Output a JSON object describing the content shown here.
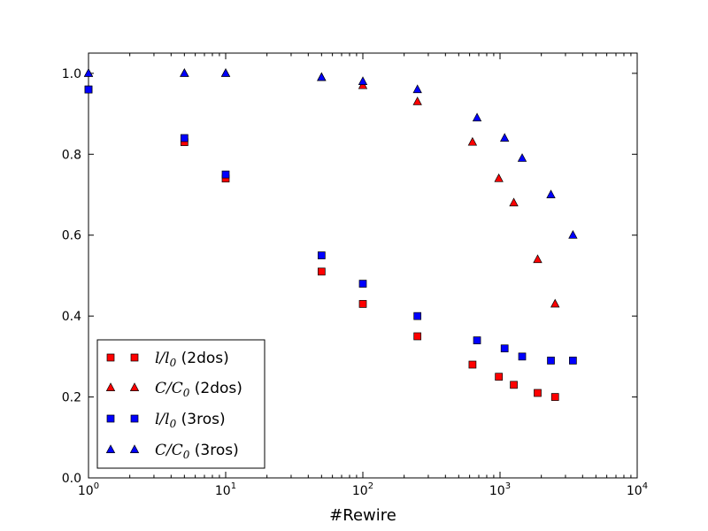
{
  "chart_data": {
    "type": "scatter",
    "title": "",
    "xlabel": "#Rewire",
    "ylabel": "",
    "xscale": "log",
    "xlim": [
      1,
      10000
    ],
    "ylim": [
      0.0,
      1.05
    ],
    "x_ticks": [
      {
        "base": "10",
        "exp": "0"
      },
      {
        "base": "10",
        "exp": "1"
      },
      {
        "base": "10",
        "exp": "2"
      },
      {
        "base": "10",
        "exp": "3"
      },
      {
        "base": "10",
        "exp": "4"
      }
    ],
    "y_ticks": [
      "0.0",
      "0.2",
      "0.4",
      "0.6",
      "0.8",
      "1.0"
    ],
    "grid": false,
    "legend_position": "lower-left",
    "series": [
      {
        "legend_math": "l/l",
        "legend_sub": "0",
        "legend_suffix": " (2dos)",
        "marker": "square",
        "color": "#ff0000",
        "x": [
          1,
          5,
          10,
          50,
          100,
          250,
          630,
          980,
          1260,
          1880,
          2520
        ],
        "y": [
          0.96,
          0.83,
          0.74,
          0.51,
          0.43,
          0.35,
          0.28,
          0.25,
          0.23,
          0.21,
          0.2
        ]
      },
      {
        "legend_math": "C/C",
        "legend_sub": "0",
        "legend_suffix": " (2dos)",
        "marker": "triangle",
        "color": "#ff0000",
        "x": [
          1,
          5,
          10,
          50,
          100,
          250,
          630,
          980,
          1260,
          1880,
          2520
        ],
        "y": [
          1.0,
          1.0,
          1.0,
          0.99,
          0.97,
          0.93,
          0.83,
          0.74,
          0.68,
          0.54,
          0.43
        ]
      },
      {
        "legend_math": "l/l",
        "legend_sub": "0",
        "legend_suffix": " (3ros)",
        "marker": "square",
        "color": "#0000ff",
        "x": [
          1,
          5,
          10,
          50,
          100,
          250,
          680,
          1080,
          1450,
          2350,
          3400
        ],
        "y": [
          0.96,
          0.84,
          0.75,
          0.55,
          0.48,
          0.4,
          0.34,
          0.32,
          0.3,
          0.29,
          0.29
        ]
      },
      {
        "legend_math": "C/C",
        "legend_sub": "0",
        "legend_suffix": " (3ros)",
        "marker": "triangle",
        "color": "#0000ff",
        "x": [
          1,
          5,
          10,
          50,
          100,
          250,
          680,
          1080,
          1450,
          2350,
          3400
        ],
        "y": [
          1.0,
          1.0,
          1.0,
          0.99,
          0.98,
          0.96,
          0.89,
          0.84,
          0.79,
          0.7,
          0.6
        ]
      }
    ]
  }
}
